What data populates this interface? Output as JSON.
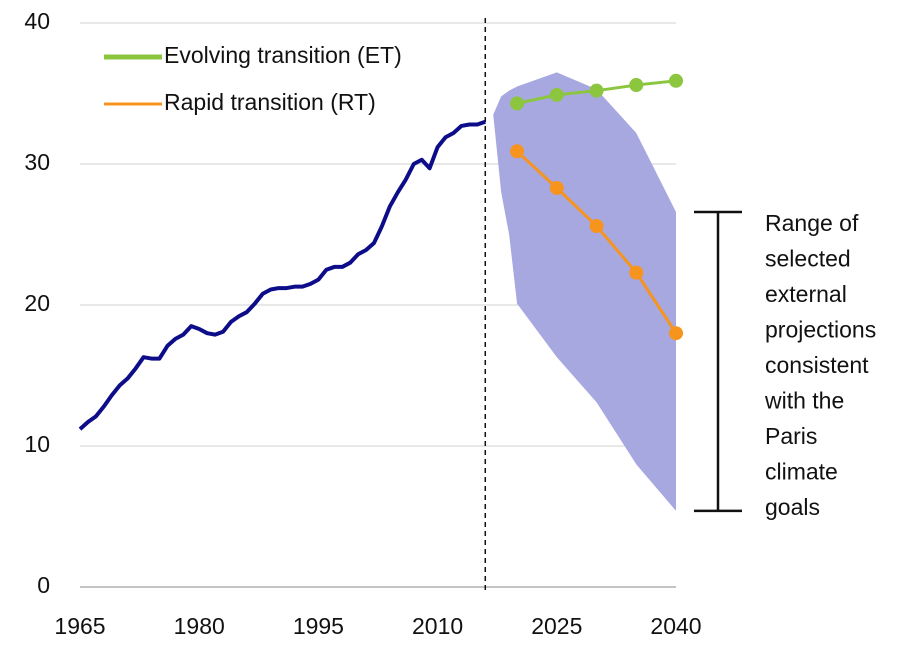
{
  "chart_data": {
    "type": "line",
    "xlim": [
      1965,
      2040
    ],
    "xticks": [
      1965,
      1980,
      1995,
      2010,
      2025,
      2040
    ],
    "ylim": [
      0,
      40
    ],
    "yticks": [
      0,
      10,
      20,
      30,
      40
    ],
    "grid": true,
    "history": {
      "color": "#0d0d8a",
      "x": [
        1965,
        1966,
        1967,
        1968,
        1969,
        1970,
        1971,
        1972,
        1973,
        1974,
        1975,
        1976,
        1977,
        1978,
        1979,
        1980,
        1981,
        1982,
        1983,
        1984,
        1985,
        1986,
        1987,
        1988,
        1989,
        1990,
        1991,
        1992,
        1993,
        1994,
        1995,
        1996,
        1997,
        1998,
        1999,
        2000,
        2001,
        2002,
        2003,
        2004,
        2005,
        2006,
        2007,
        2008,
        2009,
        2010,
        2011,
        2012,
        2013,
        2014,
        2015,
        2016
      ],
      "values": [
        11.2,
        11.7,
        12.1,
        12.8,
        13.6,
        14.3,
        14.8,
        15.5,
        16.3,
        16.2,
        16.2,
        17.1,
        17.6,
        17.9,
        18.5,
        18.3,
        18.0,
        17.9,
        18.1,
        18.8,
        19.2,
        19.5,
        20.1,
        20.8,
        21.1,
        21.2,
        21.2,
        21.3,
        21.3,
        21.5,
        21.8,
        22.5,
        22.7,
        22.7,
        23.0,
        23.6,
        23.9,
        24.4,
        25.6,
        27.0,
        28.0,
        28.9,
        30.0,
        30.3,
        29.7,
        31.2,
        31.9,
        32.2,
        32.7,
        32.8,
        32.8,
        33.0
      ]
    },
    "series": [
      {
        "name": "Evolving transition (ET)",
        "color": "#8cc63f",
        "x": [
          2020,
          2025,
          2030,
          2035,
          2040
        ],
        "values": [
          34.3,
          34.9,
          35.2,
          35.6,
          35.9
        ]
      },
      {
        "name": "Rapid transition (RT)",
        "color": "#f7941d",
        "x": [
          2020,
          2025,
          2030,
          2035,
          2040
        ],
        "values": [
          30.9,
          28.3,
          25.6,
          22.3,
          18.0
        ]
      }
    ],
    "band": {
      "color": "#a7a8e0",
      "x": [
        2017,
        2018,
        2019,
        2020,
        2025,
        2030,
        2035,
        2040
      ],
      "upper": [
        33.5,
        34.8,
        35.2,
        35.5,
        36.5,
        35.3,
        32.2,
        26.6
      ],
      "lower": [
        33.5,
        28.0,
        25.0,
        20.1,
        16.3,
        13.1,
        8.7,
        5.4
      ]
    },
    "annotation": [
      "Range of",
      "selected",
      "external",
      "projections",
      "consistent",
      "with the",
      "Paris",
      "climate",
      "goals"
    ]
  }
}
